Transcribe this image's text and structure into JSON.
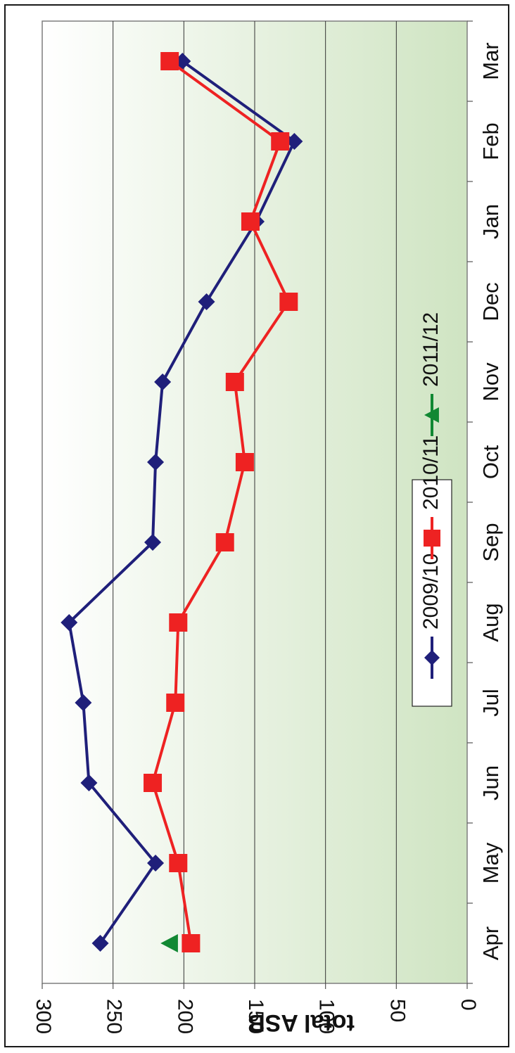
{
  "chart_data": {
    "type": "line",
    "orientation": "rotated 90° clockwise (value axis along top, months along right)",
    "title": "",
    "ylabel": "total ASB",
    "xlabel": "",
    "ylim": [
      0,
      300
    ],
    "y_ticks": [
      0,
      50,
      100,
      150,
      200,
      250,
      300
    ],
    "categories": [
      "Apr",
      "May",
      "Jun",
      "Jul",
      "Aug",
      "Sep",
      "Oct",
      "Nov",
      "Dec",
      "Jan",
      "Feb",
      "Mar"
    ],
    "grid": true,
    "legend_position": "center-right",
    "series": [
      {
        "name": "2009/10",
        "color": "#1f1f7a",
        "marker": "diamond",
        "values": [
          259,
          220,
          267,
          271,
          281,
          222,
          220,
          215,
          184,
          149,
          122,
          201
        ]
      },
      {
        "name": "2010/11",
        "color": "#ee2222",
        "marker": "square",
        "values": [
          195,
          204,
          222,
          206,
          204,
          171,
          157,
          164,
          126,
          153,
          132,
          210
        ]
      },
      {
        "name": "2011/12",
        "color": "#118833",
        "marker": "triangle",
        "values": [
          210,
          null,
          null,
          null,
          null,
          null,
          null,
          null,
          null,
          null,
          null,
          null
        ]
      }
    ],
    "background": {
      "gradient_from": "#ffffff",
      "gradient_to": "#cfe4c2"
    }
  }
}
